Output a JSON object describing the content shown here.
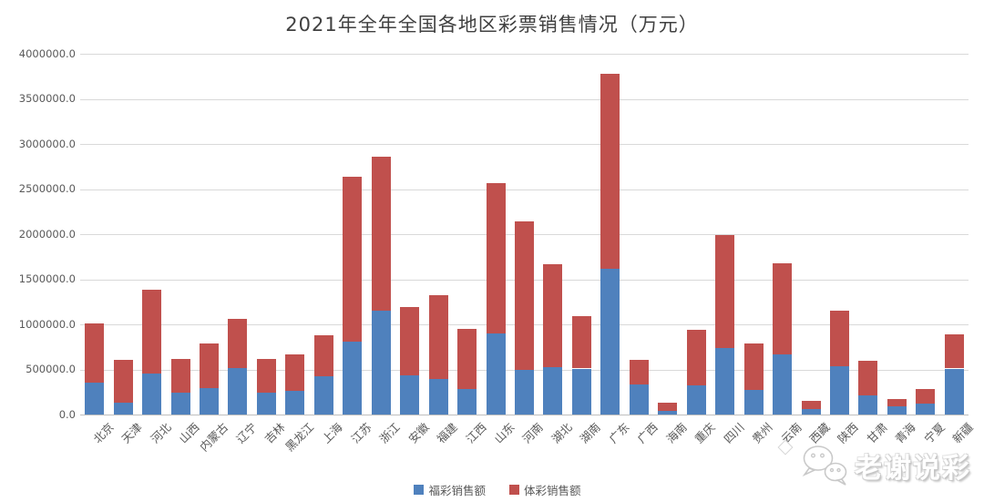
{
  "title": "2021年全年全国各地区彩票销售情况（万元）",
  "watermark": {
    "text": "老谢说彩",
    "logo": "wechat-face-logo"
  },
  "colors": {
    "welfare_blue": "#4f81bd",
    "sports_red": "#c0504d",
    "gridline": "#d9d9d9",
    "axis_line": "#bfbfbf",
    "label_text": "#595959",
    "title_text": "#404040"
  },
  "chart_data": {
    "type": "bar",
    "stacked": true,
    "title": "2021年全年全国各地区彩票销售情况（万元）",
    "xlabel": "",
    "ylabel": "",
    "ylim": [
      0,
      4000000
    ],
    "ytick_step": 500000,
    "ytick_labels": [
      "0.0",
      "500000.0",
      "1000000.0",
      "1500000.0",
      "2000000.0",
      "2500000.0",
      "3000000.0",
      "3500000.0",
      "4000000.0"
    ],
    "grid": true,
    "legend_position": "bottom",
    "categories": [
      "北京",
      "天津",
      "河北",
      "山西",
      "内蒙古",
      "辽宁",
      "吉林",
      "黑龙江",
      "上海",
      "江苏",
      "浙江",
      "安徽",
      "福建",
      "江西",
      "山东",
      "河南",
      "湖北",
      "湖南",
      "广东",
      "广西",
      "海南",
      "重庆",
      "四川",
      "贵州",
      "云南",
      "西藏",
      "陕西",
      "甘肃",
      "青海",
      "宁夏",
      "新疆"
    ],
    "series": [
      {
        "name": "福彩销售额",
        "color": "#4f81bd",
        "values": [
          350000,
          130000,
          455000,
          240000,
          295000,
          520000,
          240000,
          260000,
          420000,
          810000,
          1155000,
          435000,
          395000,
          280000,
          895000,
          490000,
          530000,
          510000,
          1615000,
          335000,
          45000,
          325000,
          735000,
          270000,
          665000,
          65000,
          540000,
          215000,
          95000,
          120000,
          510000
        ]
      },
      {
        "name": "体彩销售额",
        "color": "#c0504d",
        "values": [
          660000,
          480000,
          930000,
          375000,
          495000,
          545000,
          375000,
          405000,
          455000,
          1830000,
          1700000,
          755000,
          925000,
          665000,
          1670000,
          1650000,
          1135000,
          580000,
          2160000,
          270000,
          85000,
          615000,
          1250000,
          520000,
          1015000,
          85000,
          610000,
          380000,
          75000,
          165000,
          380000
        ]
      }
    ]
  }
}
